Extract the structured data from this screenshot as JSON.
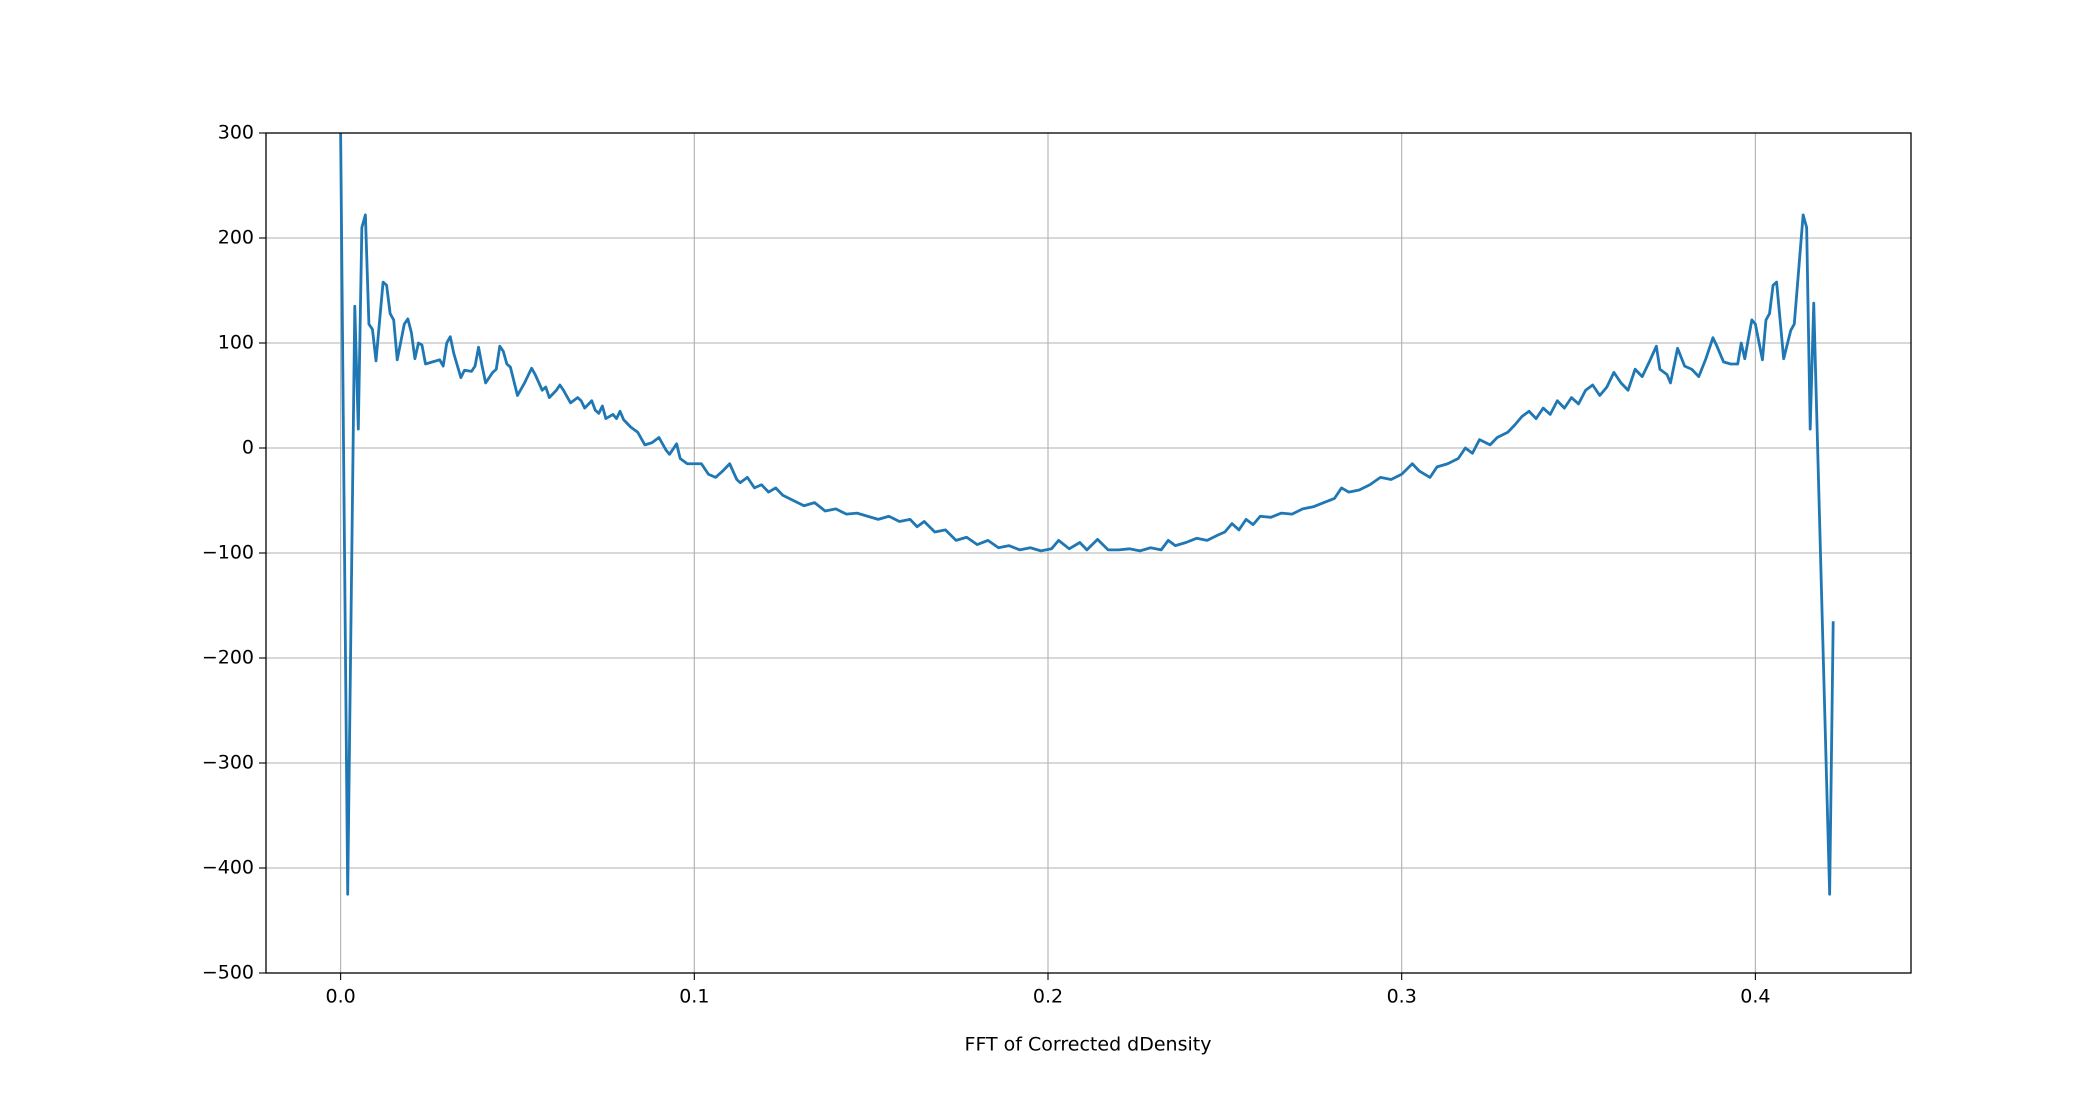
{
  "chart_data": {
    "type": "line",
    "xlabel": "FFT of Corrected dDensity",
    "xlim": [
      -0.0211,
      0.444
    ],
    "ylim": [
      -500,
      300
    ],
    "xticks": [
      {
        "value": 0,
        "label": "0.0"
      },
      0.1,
      0.2,
      0.3,
      0.4
    ],
    "yticks": [
      {
        "value": -500,
        "label": "−500"
      },
      {
        "value": -400,
        "label": "−400"
      },
      {
        "value": -300,
        "label": "−300"
      },
      {
        "value": -200,
        "label": "−200"
      },
      {
        "value": -100,
        "label": "−100"
      },
      0,
      100,
      200,
      300
    ],
    "grid": true,
    "series": [
      {
        "color": "#1f77b4",
        "x": [
          0.0,
          0.002,
          0.004,
          0.005,
          0.006,
          0.007,
          0.008,
          0.009,
          0.01,
          0.012,
          0.013,
          0.014,
          0.015,
          0.016,
          0.018,
          0.019,
          0.02,
          0.021,
          0.022,
          0.023,
          0.024,
          0.026,
          0.028,
          0.029,
          0.03,
          0.031,
          0.032,
          0.034,
          0.035,
          0.037,
          0.038,
          0.039,
          0.04,
          0.041,
          0.043,
          0.044,
          0.045,
          0.046,
          0.047,
          0.048,
          0.05,
          0.052,
          0.054,
          0.055,
          0.057,
          0.058,
          0.059,
          0.061,
          0.062,
          0.063,
          0.065,
          0.067,
          0.068,
          0.069,
          0.071,
          0.072,
          0.073,
          0.074,
          0.075,
          0.077,
          0.078,
          0.079,
          0.08,
          0.082,
          0.084,
          0.086,
          0.088,
          0.09,
          0.092,
          0.093,
          0.095,
          0.096,
          0.098,
          0.1,
          0.102,
          0.104,
          0.106,
          0.108,
          0.11,
          0.112,
          0.113,
          0.115,
          0.117,
          0.119,
          0.121,
          0.123,
          0.125,
          0.128,
          0.131,
          0.134,
          0.137,
          0.14,
          0.143,
          0.146,
          0.149,
          0.152,
          0.155,
          0.158,
          0.161,
          0.163,
          0.165,
          0.168,
          0.171,
          0.174,
          0.177,
          0.18,
          0.183,
          0.186,
          0.189,
          0.192,
          0.195,
          0.198,
          0.201,
          0.203,
          0.206,
          0.209,
          0.211,
          0.214,
          0.217,
          0.22,
          0.223,
          0.226,
          0.229,
          0.232,
          0.234,
          0.236,
          0.239,
          0.242,
          0.245,
          0.248,
          0.25,
          0.252,
          0.254,
          0.256,
          0.258,
          0.26,
          0.263,
          0.266,
          0.269,
          0.272,
          0.275,
          0.278,
          0.281,
          0.283,
          0.285,
          0.288,
          0.291,
          0.294,
          0.297,
          0.3,
          0.303,
          0.305,
          0.308,
          0.31,
          0.313,
          0.316,
          0.318,
          0.32,
          0.322,
          0.325,
          0.327,
          0.33,
          0.332,
          0.334,
          0.336,
          0.338,
          0.34,
          0.342,
          0.344,
          0.346,
          0.348,
          0.35,
          0.352,
          0.354,
          0.356,
          0.358,
          0.36,
          0.362,
          0.364,
          0.366,
          0.368,
          0.37,
          0.372,
          0.373,
          0.375,
          0.376,
          0.378,
          0.38,
          0.382,
          0.384,
          0.386,
          0.388,
          0.389,
          0.391,
          0.393,
          0.395,
          0.396,
          0.397,
          0.399,
          0.4,
          0.402,
          0.403,
          0.404,
          0.405,
          0.406,
          0.408,
          0.41,
          0.411,
          0.4135,
          0.4145,
          0.4155,
          0.4165,
          0.421,
          0.422
        ],
        "values": [
          300,
          -425,
          135,
          18,
          210,
          222,
          118,
          113,
          83,
          158,
          155,
          128,
          122,
          84,
          118,
          123,
          110,
          85,
          100,
          98,
          80,
          82,
          84,
          78,
          100,
          106,
          90,
          67,
          74,
          73,
          78,
          96,
          78,
          62,
          72,
          75,
          97,
          92,
          80,
          77,
          50,
          62,
          76,
          70,
          55,
          58,
          48,
          55,
          60,
          55,
          43,
          48,
          45,
          38,
          45,
          36,
          33,
          40,
          28,
          32,
          28,
          35,
          27,
          20,
          15,
          3,
          5,
          10,
          -2,
          -6,
          4,
          -10,
          -15,
          -15,
          -15,
          -25,
          -28,
          -22,
          -15,
          -30,
          -33,
          -28,
          -38,
          -35,
          -42,
          -38,
          -45,
          -50,
          -55,
          -52,
          -60,
          -58,
          -63,
          -62,
          -65,
          -68,
          -65,
          -70,
          -68,
          -75,
          -70,
          -80,
          -78,
          -88,
          -85,
          -92,
          -88,
          -95,
          -93,
          -97,
          -95,
          -98,
          -96,
          -88,
          -96,
          -90,
          -97,
          -87,
          -97,
          -97,
          -96,
          -98,
          -95,
          -97,
          -88,
          -93,
          -90,
          -86,
          -88,
          -83,
          -80,
          -72,
          -78,
          -68,
          -73,
          -65,
          -66,
          -62,
          -63,
          -58,
          -56,
          -52,
          -48,
          -38,
          -42,
          -40,
          -35,
          -28,
          -30,
          -25,
          -15,
          -22,
          -28,
          -18,
          -15,
          -10,
          0,
          -5,
          8,
          3,
          10,
          15,
          22,
          30,
          35,
          28,
          38,
          32,
          45,
          38,
          48,
          42,
          55,
          60,
          50,
          58,
          72,
          62,
          55,
          75,
          68,
          82,
          97,
          75,
          70,
          62,
          95,
          78,
          75,
          68,
          85,
          105,
          98,
          82,
          80,
          80,
          100,
          85,
          122,
          118,
          84,
          122,
          128,
          155,
          158,
          85,
          112,
          118,
          222,
          210,
          18,
          138,
          -425,
          -165
        ]
      }
    ]
  }
}
